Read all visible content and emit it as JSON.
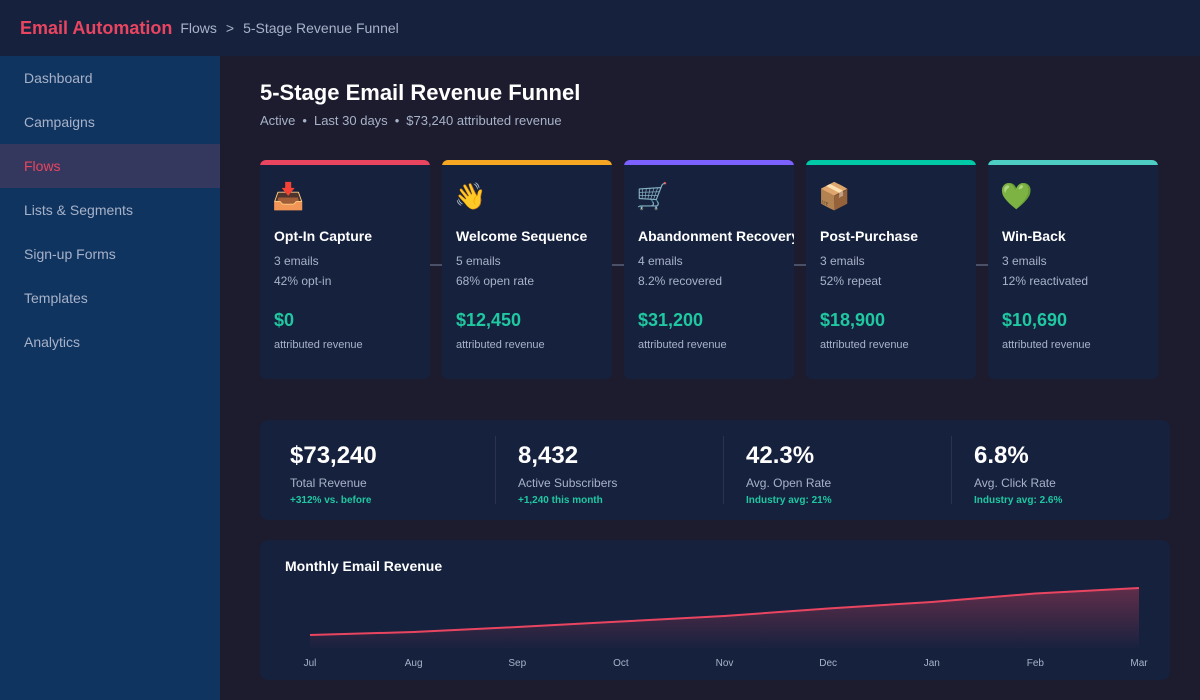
{
  "header": {
    "app_title": "Email Automation",
    "breadcrumb": [
      "Flows",
      "5-Stage Revenue Funnel"
    ],
    "separator": ">"
  },
  "sidebar": {
    "items": [
      {
        "label": "Dashboard",
        "active": false
      },
      {
        "label": "Campaigns",
        "active": false
      },
      {
        "label": "Flows",
        "active": true
      },
      {
        "label": "Lists & Segments",
        "active": false
      },
      {
        "label": "Sign-up Forms",
        "active": false
      },
      {
        "label": "Templates",
        "active": false
      },
      {
        "label": "Analytics",
        "active": false
      }
    ]
  },
  "page": {
    "title": "5-Stage Email Revenue Funnel",
    "status": "Active",
    "period": "Last 30 days",
    "revenue_summary": "$73,240 attributed revenue"
  },
  "stages": [
    {
      "icon": "📥",
      "icon_name": "inbox-tray-icon",
      "name": "Opt-In Capture",
      "emails": "3 emails",
      "metric": "42% opt-in",
      "revenue": "$0",
      "revenue_label": "attributed revenue",
      "color": "#e94560"
    },
    {
      "icon": "👋",
      "icon_name": "waving-hand-icon",
      "name": "Welcome Sequence",
      "emails": "5 emails",
      "metric": "68% open rate",
      "revenue": "$12,450",
      "revenue_label": "attributed revenue",
      "color": "#f5a623"
    },
    {
      "icon": "🛒",
      "icon_name": "shopping-cart-icon",
      "name": "Abandonment Recovery",
      "emails": "4 emails",
      "metric": "8.2% recovered",
      "revenue": "$31,200",
      "revenue_label": "attributed revenue",
      "color": "#7b61ff"
    },
    {
      "icon": "📦",
      "icon_name": "package-icon",
      "name": "Post-Purchase",
      "emails": "3 emails",
      "metric": "52% repeat",
      "revenue": "$18,900",
      "revenue_label": "attributed revenue",
      "color": "#00c9a7"
    },
    {
      "icon": "💚",
      "icon_name": "green-heart-icon",
      "name": "Win-Back",
      "emails": "3 emails",
      "metric": "12% reactivated",
      "revenue": "$10,690",
      "revenue_label": "attributed revenue",
      "color": "#4ecdc4"
    }
  ],
  "kpis": [
    {
      "value": "$73,240",
      "label": "Total Revenue",
      "note": "+312% vs. before"
    },
    {
      "value": "8,432",
      "label": "Active Subscribers",
      "note": "+1,240 this month"
    },
    {
      "value": "42.3%",
      "label": "Avg. Open Rate",
      "note": "Industry avg: 21%"
    },
    {
      "value": "6.8%",
      "label": "Avg. Click Rate",
      "note": "Industry avg: 2.6%"
    }
  ],
  "colors": {
    "accent": "#e94560",
    "positive": "#1fc8a0",
    "muted_text": "#a8b2c8"
  },
  "chart_data": {
    "type": "area",
    "title": "Monthly Email Revenue",
    "categories": [
      "Jul",
      "Aug",
      "Sep",
      "Oct",
      "Nov",
      "Dec",
      "Jan",
      "Feb",
      "Mar"
    ],
    "values": [
      1.0,
      1.6,
      2.6,
      3.7,
      4.8,
      6.3,
      7.6,
      9.3,
      10.4
    ],
    "series_color": "#e94560",
    "grid": false
  }
}
